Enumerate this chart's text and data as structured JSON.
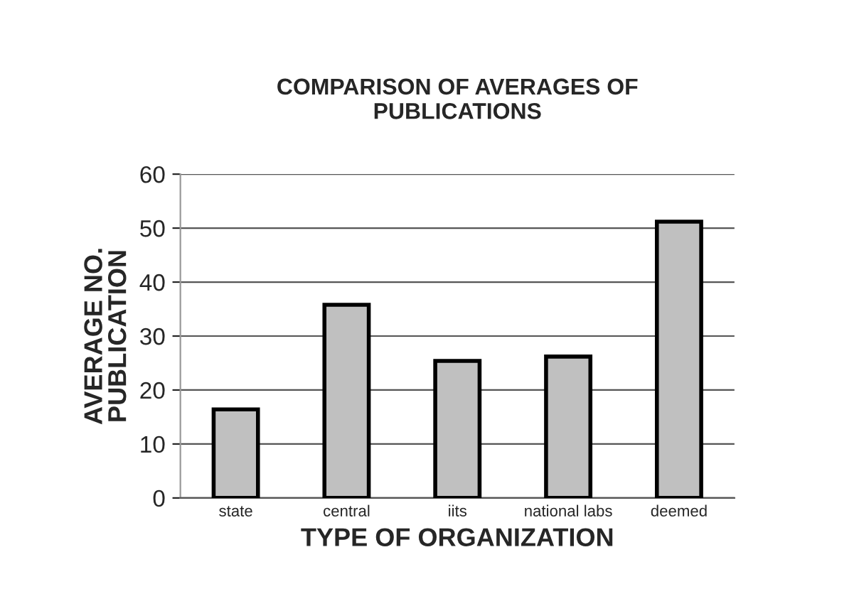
{
  "chart_data": {
    "type": "bar",
    "title": "COMPARISON OF AVERAGES OF\nPUBLICATIONS",
    "xlabel": "TYPE OF ORGANIZATION",
    "ylabel": "AVERAGE NO.\nPUBLICATION",
    "categories": [
      "state",
      "central",
      "iits",
      "national labs",
      "deemed"
    ],
    "values": [
      16.4,
      35.8,
      25.4,
      26.2,
      51.2
    ],
    "color": "#c0c0c0",
    "ylim": [
      0,
      60
    ],
    "yticks": [
      0,
      10,
      20,
      30,
      40,
      50,
      60
    ],
    "grid": "y"
  }
}
